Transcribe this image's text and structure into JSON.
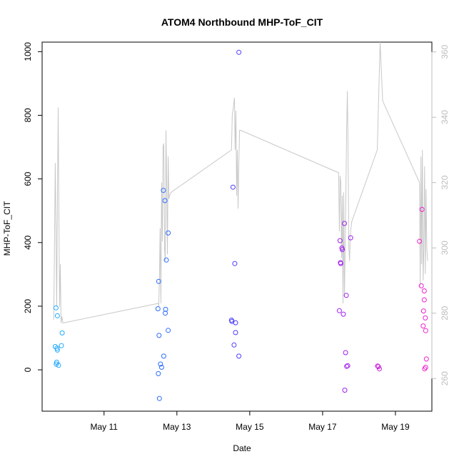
{
  "chart_data": {
    "type": "scatter",
    "title": "ATOM4 Northbound MHP-ToF_CIT",
    "xlabel": "Date",
    "ylabel": "MHP-ToF_CIT",
    "x_ticks": [
      "May 11",
      "May 13",
      "May 15",
      "May 17",
      "May 19"
    ],
    "x_tick_days": [
      11,
      13,
      15,
      17,
      19
    ],
    "xlim": [
      9.3,
      20.0
    ],
    "ylim": [
      -130,
      1030
    ],
    "y_ticks": [
      0,
      200,
      400,
      600,
      800,
      1000
    ],
    "y2lim": [
      250,
      363
    ],
    "y2_ticks": [
      260,
      280,
      300,
      320,
      340,
      360
    ],
    "points": [
      {
        "x": 9.66,
        "y": 73,
        "color": "#1ca8ff"
      },
      {
        "x": 9.68,
        "y": 195,
        "color": "#1ca8ff"
      },
      {
        "x": 9.69,
        "y": 18,
        "color": "#1ca8ff"
      },
      {
        "x": 9.7,
        "y": 24,
        "color": "#1ca8ff"
      },
      {
        "x": 9.71,
        "y": 68,
        "color": "#1ca8ff"
      },
      {
        "x": 9.72,
        "y": 170,
        "color": "#1ca8ff"
      },
      {
        "x": 9.72,
        "y": 62,
        "color": "#1ca8ff"
      },
      {
        "x": 9.75,
        "y": 14,
        "color": "#1ca8ff"
      },
      {
        "x": 9.83,
        "y": 76,
        "color": "#1ca8ff"
      },
      {
        "x": 9.85,
        "y": 116,
        "color": "#1ca8ff"
      },
      {
        "x": 12.48,
        "y": 192,
        "color": "#2a6cff"
      },
      {
        "x": 12.49,
        "y": -12,
        "color": "#2a6cff"
      },
      {
        "x": 12.5,
        "y": 278,
        "color": "#2a6cff"
      },
      {
        "x": 12.51,
        "y": 108,
        "color": "#2a6cff"
      },
      {
        "x": 12.52,
        "y": -90,
        "color": "#2a6cff"
      },
      {
        "x": 12.55,
        "y": 18,
        "color": "#2a6cff"
      },
      {
        "x": 12.58,
        "y": 8,
        "color": "#2a6cff"
      },
      {
        "x": 12.63,
        "y": 564,
        "color": "#2a6cff"
      },
      {
        "x": 12.64,
        "y": 43,
        "color": "#2a6cff"
      },
      {
        "x": 12.67,
        "y": 532,
        "color": "#2a6cff"
      },
      {
        "x": 12.68,
        "y": 178,
        "color": "#2a6cff"
      },
      {
        "x": 12.69,
        "y": 190,
        "color": "#2a6cff"
      },
      {
        "x": 12.71,
        "y": 345,
        "color": "#2a6cff"
      },
      {
        "x": 12.76,
        "y": 430,
        "color": "#2a6cff"
      },
      {
        "x": 12.76,
        "y": 124,
        "color": "#2a6cff"
      },
      {
        "x": 14.5,
        "y": 156,
        "color": "#4a3cff"
      },
      {
        "x": 14.51,
        "y": 152,
        "color": "#4a3cff"
      },
      {
        "x": 14.54,
        "y": 574,
        "color": "#4a3cff"
      },
      {
        "x": 14.57,
        "y": 78,
        "color": "#4a3cff"
      },
      {
        "x": 14.59,
        "y": 334,
        "color": "#4a3cff"
      },
      {
        "x": 14.61,
        "y": 148,
        "color": "#4a3cff"
      },
      {
        "x": 14.61,
        "y": 117,
        "color": "#4a3cff"
      },
      {
        "x": 14.7,
        "y": 998,
        "color": "#4a3cff"
      },
      {
        "x": 14.7,
        "y": 43,
        "color": "#4a3cff"
      },
      {
        "x": 17.46,
        "y": 186,
        "color": "#a020f0"
      },
      {
        "x": 17.48,
        "y": 406,
        "color": "#a020f0"
      },
      {
        "x": 17.49,
        "y": 337,
        "color": "#a020f0"
      },
      {
        "x": 17.5,
        "y": 334,
        "color": "#a020f0"
      },
      {
        "x": 17.53,
        "y": 383,
        "color": "#a020f0"
      },
      {
        "x": 17.54,
        "y": 378,
        "color": "#a020f0"
      },
      {
        "x": 17.57,
        "y": 175,
        "color": "#a020f0"
      },
      {
        "x": 17.6,
        "y": 460,
        "color": "#a020f0"
      },
      {
        "x": 17.61,
        "y": -64,
        "color": "#a020f0"
      },
      {
        "x": 17.63,
        "y": 54,
        "color": "#a020f0"
      },
      {
        "x": 17.65,
        "y": 234,
        "color": "#a020f0"
      },
      {
        "x": 17.66,
        "y": 11,
        "color": "#a020f0"
      },
      {
        "x": 17.69,
        "y": 13,
        "color": "#a020f0"
      },
      {
        "x": 17.77,
        "y": 415,
        "color": "#a020f0"
      },
      {
        "x": 18.51,
        "y": 12,
        "color": "#d020e0"
      },
      {
        "x": 18.53,
        "y": 10,
        "color": "#d020e0"
      },
      {
        "x": 18.56,
        "y": 3,
        "color": "#d020e0"
      },
      {
        "x": 19.66,
        "y": 404,
        "color": "#ee22cc"
      },
      {
        "x": 19.71,
        "y": 264,
        "color": "#ee22cc"
      },
      {
        "x": 19.73,
        "y": 504,
        "color": "#ee22cc"
      },
      {
        "x": 19.76,
        "y": 138,
        "color": "#ee22cc"
      },
      {
        "x": 19.77,
        "y": 185,
        "color": "#ee22cc"
      },
      {
        "x": 19.79,
        "y": 248,
        "color": "#ee22cc"
      },
      {
        "x": 19.79,
        "y": 220,
        "color": "#ee22cc"
      },
      {
        "x": 19.8,
        "y": 3,
        "color": "#ee22cc"
      },
      {
        "x": 19.82,
        "y": 163,
        "color": "#ee22cc"
      },
      {
        "x": 19.83,
        "y": 123,
        "color": "#ee22cc"
      },
      {
        "x": 19.83,
        "y": 8,
        "color": "#ee22cc"
      },
      {
        "x": 19.85,
        "y": 34,
        "color": "#ee22cc"
      }
    ],
    "line_series": {
      "color": "#c8c8c8",
      "axis": "right",
      "x": [
        9.62,
        9.64,
        9.66,
        9.68,
        9.7,
        9.72,
        9.74,
        9.76,
        9.78,
        9.8,
        9.82,
        9.84,
        9.87,
        12.49,
        12.5,
        12.52,
        12.54,
        12.56,
        12.58,
        12.6,
        12.62,
        12.64,
        12.66,
        12.68,
        12.7,
        12.72,
        12.74,
        12.76,
        12.78,
        12.8,
        12.84,
        14.5,
        14.52,
        14.54,
        14.56,
        14.58,
        14.6,
        14.62,
        14.64,
        14.66,
        14.68,
        14.7,
        14.72,
        14.75,
        17.44,
        17.46,
        17.48,
        17.5,
        17.52,
        17.54,
        17.56,
        17.58,
        17.6,
        17.62,
        17.64,
        17.66,
        17.68,
        17.7,
        17.72,
        17.74,
        17.76,
        17.8,
        18.5,
        18.58,
        18.65,
        19.66,
        19.68,
        19.7,
        19.72,
        19.74,
        19.76,
        19.78,
        19.8,
        19.82,
        19.84,
        19.86,
        19.88
      ],
      "y": [
        278,
        300,
        326,
        306,
        282,
        312,
        343,
        310,
        282,
        295,
        277,
        279,
        277,
        283,
        282,
        290,
        306,
        283,
        320,
        302,
        331,
        332,
        300,
        296,
        336,
        320,
        298,
        328,
        315,
        316,
        317,
        330,
        341,
        342,
        344,
        346,
        330,
        342,
        316,
        330,
        312,
        326,
        336,
        336,
        323,
        305,
        322,
        320,
        297,
        316,
        283,
        317,
        285,
        301,
        318,
        336,
        348,
        330,
        300,
        296,
        304,
        308,
        330,
        363,
        345,
        320,
        288,
        328,
        295,
        330,
        290,
        300,
        325,
        292,
        318,
        300,
        296
      ]
    }
  }
}
